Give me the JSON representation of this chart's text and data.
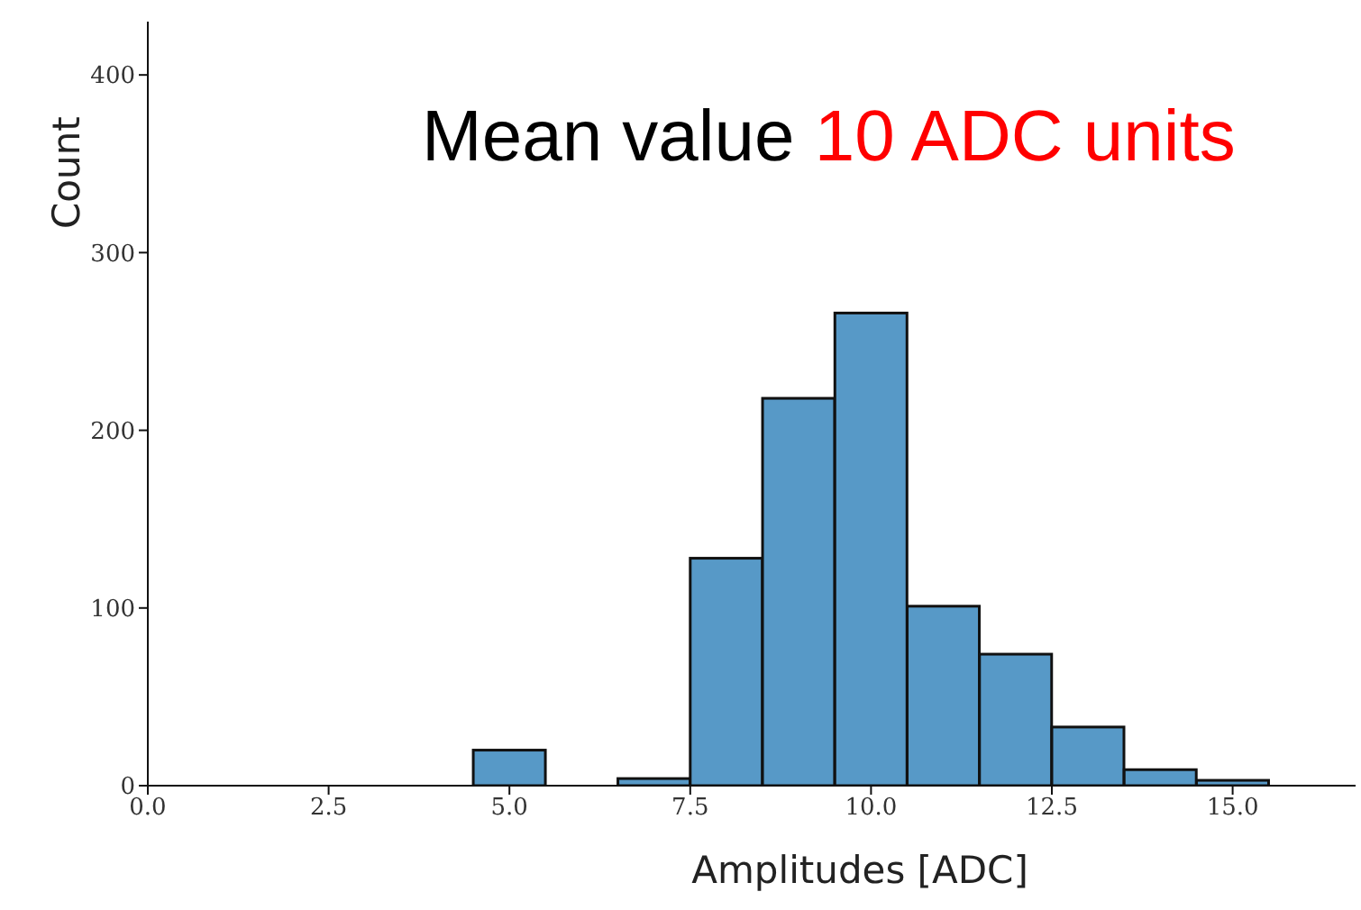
{
  "chart_data": {
    "type": "histogram",
    "xlabel": "Amplitudes [ADC]",
    "ylabel": "Count",
    "annotations": [
      "Mean value",
      "10 ADC units"
    ],
    "bins": [
      4.5,
      5.5,
      6.5,
      7.5,
      8.5,
      9.5,
      10.5,
      11.5,
      12.5,
      13.5,
      14.5,
      15.5
    ],
    "values": [
      20,
      0,
      4,
      128,
      218,
      266,
      101,
      74,
      33,
      9,
      3
    ],
    "color": "#5799c7",
    "xlim": [
      0,
      16.7
    ],
    "xticks": [
      {
        "value": 0,
        "label": "0.0"
      },
      {
        "value": 2.5,
        "label": "2.5"
      },
      {
        "value": 5,
        "label": "5.0"
      },
      {
        "value": 7.5,
        "label": "7.5"
      },
      {
        "value": 10,
        "label": "10.0"
      },
      {
        "value": 12.5,
        "label": "12.5"
      },
      {
        "value": 15,
        "label": "15.0"
      }
    ],
    "ylim": [
      0,
      430
    ],
    "yticks": [
      0,
      100,
      200,
      300,
      400
    ],
    "grid": false,
    "legend": false
  }
}
